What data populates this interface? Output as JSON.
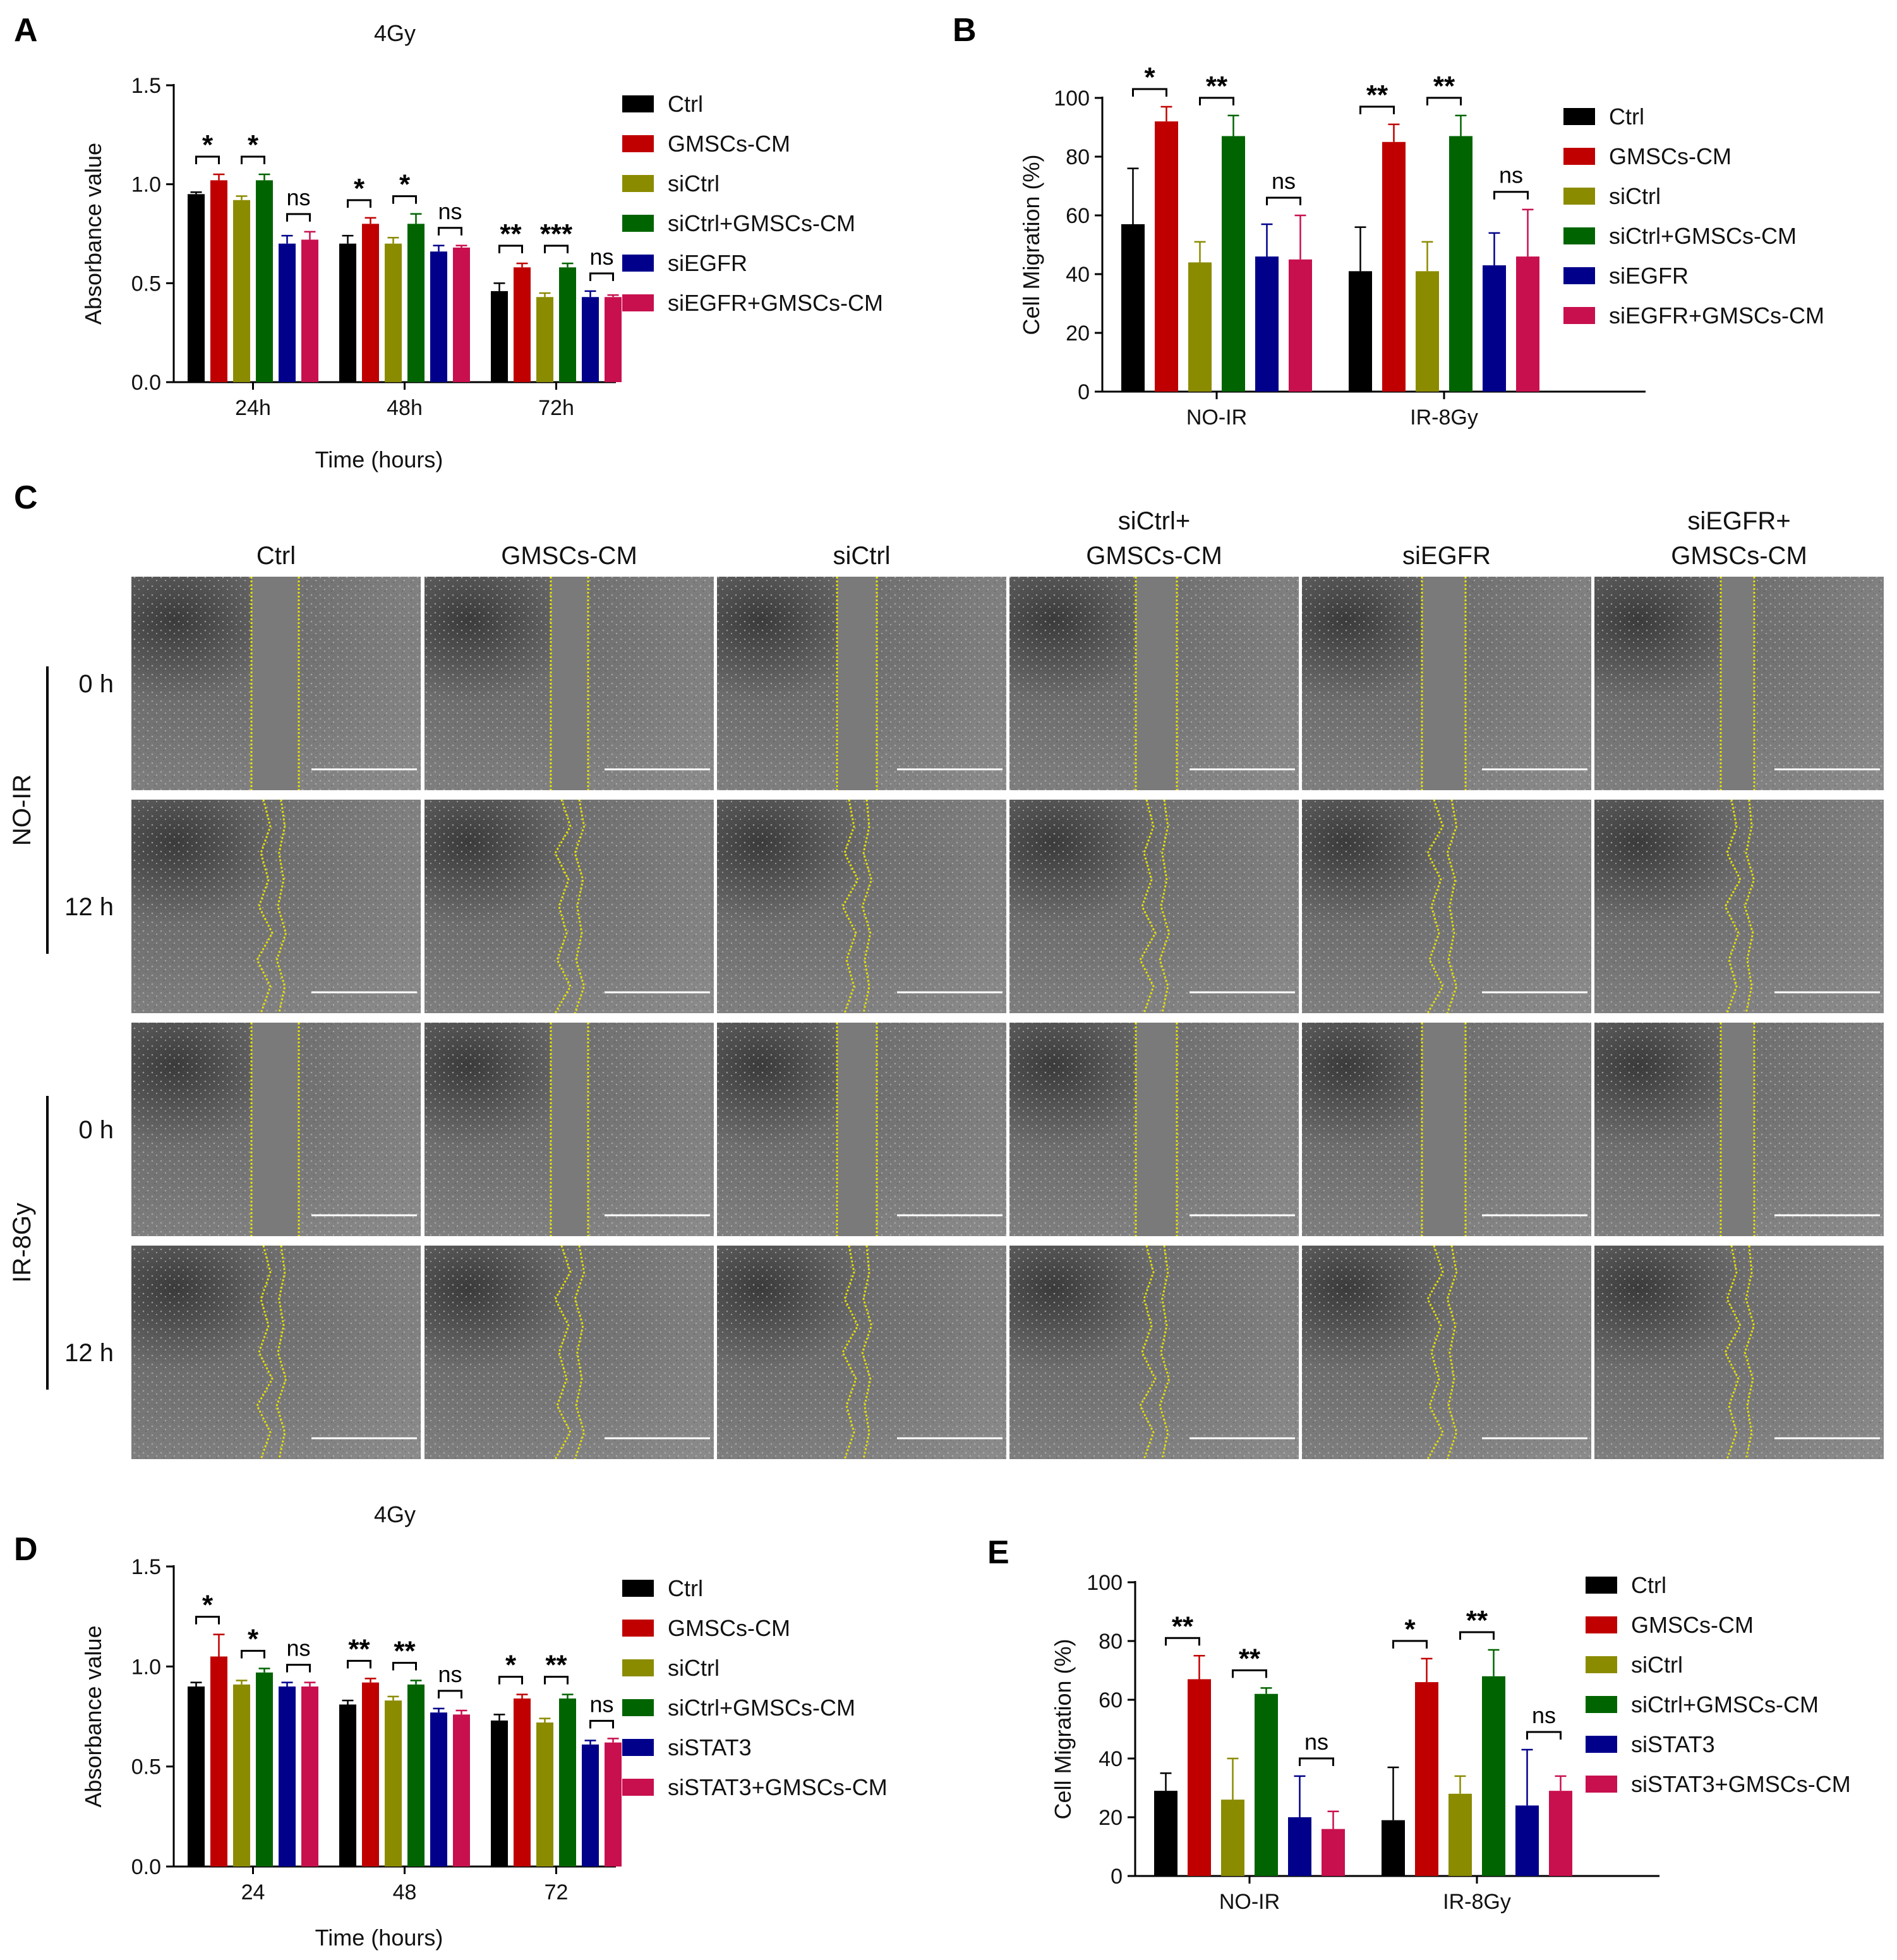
{
  "panels": {
    "A": "A",
    "B": "B",
    "C": "C",
    "D": "D",
    "E": "E"
  },
  "chart_data": [
    {
      "id": "A",
      "type": "bar",
      "title": "4Gy",
      "xlabel": "Time (hours)",
      "ylabel": "Absorbance value",
      "ylim": [
        0,
        1.5
      ],
      "yticks": [
        "0.0",
        "0.5",
        "1.0",
        "1.5"
      ],
      "categories": [
        "24h",
        "48h",
        "72h"
      ],
      "series": [
        {
          "name": "Ctrl",
          "color": "#000000",
          "values": [
            0.95,
            0.7,
            0.46
          ],
          "errors": [
            0.01,
            0.04,
            0.04
          ]
        },
        {
          "name": "GMSCs-CM",
          "color": "#c00000",
          "values": [
            1.02,
            0.8,
            0.58
          ],
          "errors": [
            0.03,
            0.03,
            0.02
          ]
        },
        {
          "name": "siCtrl",
          "color": "#8b8b00",
          "values": [
            0.92,
            0.7,
            0.43
          ],
          "errors": [
            0.02,
            0.03,
            0.02
          ]
        },
        {
          "name": "siCtrl+GMSCs-CM",
          "color": "#006400",
          "values": [
            1.02,
            0.8,
            0.58
          ],
          "errors": [
            0.03,
            0.05,
            0.02
          ]
        },
        {
          "name": "siEGFR",
          "color": "#00008b",
          "values": [
            0.7,
            0.66,
            0.43
          ],
          "errors": [
            0.04,
            0.03,
            0.03
          ]
        },
        {
          "name": "siEGFR+GMSCs-CM",
          "color": "#c8104e",
          "values": [
            0.72,
            0.68,
            0.43
          ],
          "errors": [
            0.04,
            0.01,
            0.01
          ]
        }
      ],
      "significance": [
        {
          "category": 0,
          "pair": [
            0,
            1
          ],
          "label": "*"
        },
        {
          "category": 0,
          "pair": [
            2,
            3
          ],
          "label": "*"
        },
        {
          "category": 0,
          "pair": [
            4,
            5
          ],
          "label": "ns"
        },
        {
          "category": 1,
          "pair": [
            0,
            1
          ],
          "label": "*"
        },
        {
          "category": 1,
          "pair": [
            2,
            3
          ],
          "label": "*"
        },
        {
          "category": 1,
          "pair": [
            4,
            5
          ],
          "label": "ns"
        },
        {
          "category": 2,
          "pair": [
            0,
            1
          ],
          "label": "**"
        },
        {
          "category": 2,
          "pair": [
            2,
            3
          ],
          "label": "***"
        },
        {
          "category": 2,
          "pair": [
            4,
            5
          ],
          "label": "ns"
        }
      ]
    },
    {
      "id": "B",
      "type": "bar",
      "title": "",
      "xlabel": "",
      "ylabel": "Cell Migration (%)",
      "ylim": [
        0,
        100
      ],
      "yticks": [
        "0",
        "20",
        "40",
        "60",
        "80",
        "100"
      ],
      "categories": [
        "NO-IR",
        "IR-8Gy"
      ],
      "series": [
        {
          "name": "Ctrl",
          "color": "#000000",
          "values": [
            57,
            41
          ],
          "errors": [
            19,
            15
          ]
        },
        {
          "name": "GMSCs-CM",
          "color": "#c00000",
          "values": [
            92,
            85
          ],
          "errors": [
            5,
            6
          ]
        },
        {
          "name": "siCtrl",
          "color": "#8b8b00",
          "values": [
            44,
            41
          ],
          "errors": [
            7,
            10
          ]
        },
        {
          "name": "siCtrl+GMSCs-CM",
          "color": "#006400",
          "values": [
            87,
            87
          ],
          "errors": [
            7,
            7
          ]
        },
        {
          "name": "siEGFR",
          "color": "#00008b",
          "values": [
            46,
            43
          ],
          "errors": [
            11,
            11
          ]
        },
        {
          "name": "siEGFR+GMSCs-CM",
          "color": "#c8104e",
          "values": [
            45,
            46
          ],
          "errors": [
            15,
            16
          ]
        }
      ],
      "significance": [
        {
          "category": 0,
          "pair": [
            0,
            1
          ],
          "label": "*"
        },
        {
          "category": 0,
          "pair": [
            2,
            3
          ],
          "label": "**"
        },
        {
          "category": 0,
          "pair": [
            4,
            5
          ],
          "label": "ns"
        },
        {
          "category": 1,
          "pair": [
            0,
            1
          ],
          "label": "**"
        },
        {
          "category": 1,
          "pair": [
            2,
            3
          ],
          "label": "**"
        },
        {
          "category": 1,
          "pair": [
            4,
            5
          ],
          "label": "ns"
        }
      ]
    },
    {
      "id": "D",
      "type": "bar",
      "title": "4Gy",
      "xlabel": "Time (hours)",
      "ylabel": "Absorbance value",
      "ylim": [
        0,
        1.5
      ],
      "yticks": [
        "0.0",
        "0.5",
        "1.0",
        "1.5"
      ],
      "categories": [
        "24",
        "48",
        "72"
      ],
      "series": [
        {
          "name": "Ctrl",
          "color": "#000000",
          "values": [
            0.9,
            0.81,
            0.73
          ],
          "errors": [
            0.02,
            0.02,
            0.03
          ]
        },
        {
          "name": "GMSCs-CM",
          "color": "#c00000",
          "values": [
            1.05,
            0.92,
            0.84
          ],
          "errors": [
            0.11,
            0.02,
            0.02
          ]
        },
        {
          "name": "siCtrl",
          "color": "#8b8b00",
          "values": [
            0.91,
            0.83,
            0.72
          ],
          "errors": [
            0.02,
            0.02,
            0.02
          ]
        },
        {
          "name": "siCtrl+GMSCs-CM",
          "color": "#006400",
          "values": [
            0.97,
            0.91,
            0.84
          ],
          "errors": [
            0.02,
            0.02,
            0.02
          ]
        },
        {
          "name": "siSTAT3",
          "color": "#00008b",
          "values": [
            0.9,
            0.77,
            0.61
          ],
          "errors": [
            0.02,
            0.02,
            0.02
          ]
        },
        {
          "name": "siSTAT3+GMSCs-CM",
          "color": "#c8104e",
          "values": [
            0.9,
            0.76,
            0.62
          ],
          "errors": [
            0.02,
            0.02,
            0.02
          ]
        }
      ],
      "significance": [
        {
          "category": 0,
          "pair": [
            0,
            1
          ],
          "label": "*"
        },
        {
          "category": 0,
          "pair": [
            2,
            3
          ],
          "label": "*"
        },
        {
          "category": 0,
          "pair": [
            4,
            5
          ],
          "label": "ns"
        },
        {
          "category": 1,
          "pair": [
            0,
            1
          ],
          "label": "**"
        },
        {
          "category": 1,
          "pair": [
            2,
            3
          ],
          "label": "**"
        },
        {
          "category": 1,
          "pair": [
            4,
            5
          ],
          "label": "ns"
        },
        {
          "category": 2,
          "pair": [
            0,
            1
          ],
          "label": "*"
        },
        {
          "category": 2,
          "pair": [
            2,
            3
          ],
          "label": "**"
        },
        {
          "category": 2,
          "pair": [
            4,
            5
          ],
          "label": "ns"
        }
      ]
    },
    {
      "id": "E",
      "type": "bar",
      "title": "",
      "xlabel": "",
      "ylabel": "Cell Migration (%)",
      "ylim": [
        0,
        100
      ],
      "yticks": [
        "0",
        "20",
        "40",
        "60",
        "80",
        "100"
      ],
      "categories": [
        "NO-IR",
        "IR-8Gy"
      ],
      "series": [
        {
          "name": "Ctrl",
          "color": "#000000",
          "values": [
            29,
            19
          ],
          "errors": [
            6,
            18
          ]
        },
        {
          "name": "GMSCs-CM",
          "color": "#c00000",
          "values": [
            67,
            66
          ],
          "errors": [
            8,
            8
          ]
        },
        {
          "name": "siCtrl",
          "color": "#8b8b00",
          "values": [
            26,
            28
          ],
          "errors": [
            14,
            6
          ]
        },
        {
          "name": "siCtrl+GMSCs-CM",
          "color": "#006400",
          "values": [
            62,
            68
          ],
          "errors": [
            2,
            9
          ]
        },
        {
          "name": "siSTAT3",
          "color": "#00008b",
          "values": [
            20,
            24
          ],
          "errors": [
            14,
            19
          ]
        },
        {
          "name": "siSTAT3+GMSCs-CM",
          "color": "#c8104e",
          "values": [
            16,
            29
          ],
          "errors": [
            6,
            5
          ]
        }
      ],
      "significance": [
        {
          "category": 0,
          "pair": [
            0,
            1
          ],
          "label": "**"
        },
        {
          "category": 0,
          "pair": [
            2,
            3
          ],
          "label": "**"
        },
        {
          "category": 0,
          "pair": [
            4,
            5
          ],
          "label": "ns"
        },
        {
          "category": 1,
          "pair": [
            0,
            1
          ],
          "label": "*"
        },
        {
          "category": 1,
          "pair": [
            2,
            3
          ],
          "label": "**"
        },
        {
          "category": 1,
          "pair": [
            4,
            5
          ],
          "label": "ns"
        }
      ]
    }
  ],
  "micrograph_grid": {
    "columns": [
      "Ctrl",
      "GMSCs-CM",
      "siCtrl",
      "siCtrl+|GMSCs-CM",
      "siEGFR",
      "siEGFR+|GMSCs-CM"
    ],
    "groups": [
      {
        "label": "NO-IR",
        "rows": [
          "0 h",
          "12 h"
        ]
      },
      {
        "label": "IR-8Gy",
        "rows": [
          "0 h",
          "12 h"
        ]
      }
    ]
  }
}
